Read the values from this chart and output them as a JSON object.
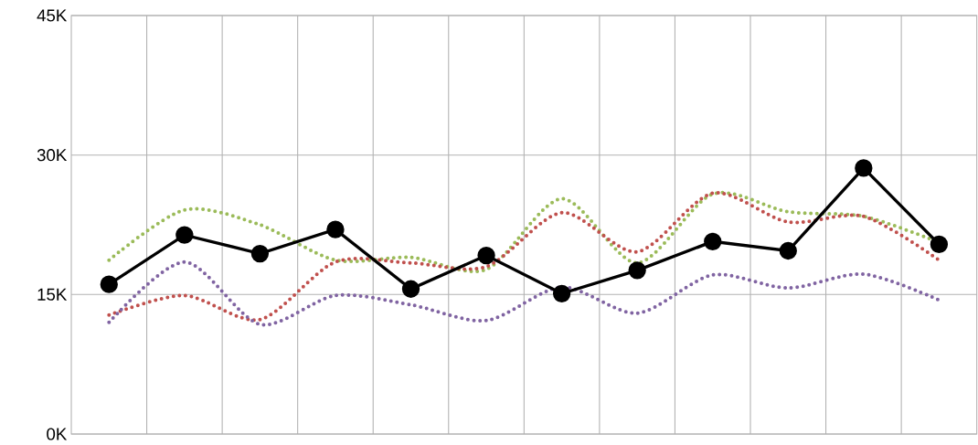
{
  "chart_data": {
    "type": "line",
    "categories": [
      null,
      null,
      null,
      null,
      null,
      null,
      null,
      null,
      null,
      null,
      null,
      null
    ],
    "series": [
      {
        "color": "#9bbb59",
        "line_style": "dotted",
        "marker": "none",
        "values": [
          18.7,
          24.1,
          22.5,
          18.7,
          19.0,
          17.7,
          25.3,
          18.4,
          25.8,
          23.9,
          23.4,
          20.6
        ]
      },
      {
        "color": "#c0504d",
        "line_style": "dotted",
        "marker": "none",
        "values": [
          12.8,
          14.9,
          12.3,
          18.5,
          18.4,
          18.0,
          23.8,
          19.6,
          25.9,
          22.8,
          23.4,
          18.7
        ]
      },
      {
        "color": "#8064a2",
        "line_style": "dotted",
        "marker": "none",
        "values": [
          12.0,
          18.5,
          11.8,
          14.9,
          13.9,
          12.2,
          15.8,
          13.0,
          17.1,
          15.7,
          17.2,
          14.4
        ]
      },
      {
        "color": "#000000",
        "line_style": "solid",
        "marker": "circle",
        "values": [
          16.1,
          21.4,
          19.4,
          22.0,
          15.6,
          19.2,
          15.1,
          17.6,
          20.7,
          19.7,
          28.6,
          20.4
        ]
      }
    ],
    "ylim": [
      0,
      45
    ],
    "yticks": [
      {
        "value": 0,
        "label": "0K"
      },
      {
        "value": 15,
        "label": "15K"
      },
      {
        "value": 30,
        "label": "30K"
      },
      {
        "value": 45,
        "label": "45K"
      }
    ],
    "grid": true,
    "tick_labels": "y"
  }
}
